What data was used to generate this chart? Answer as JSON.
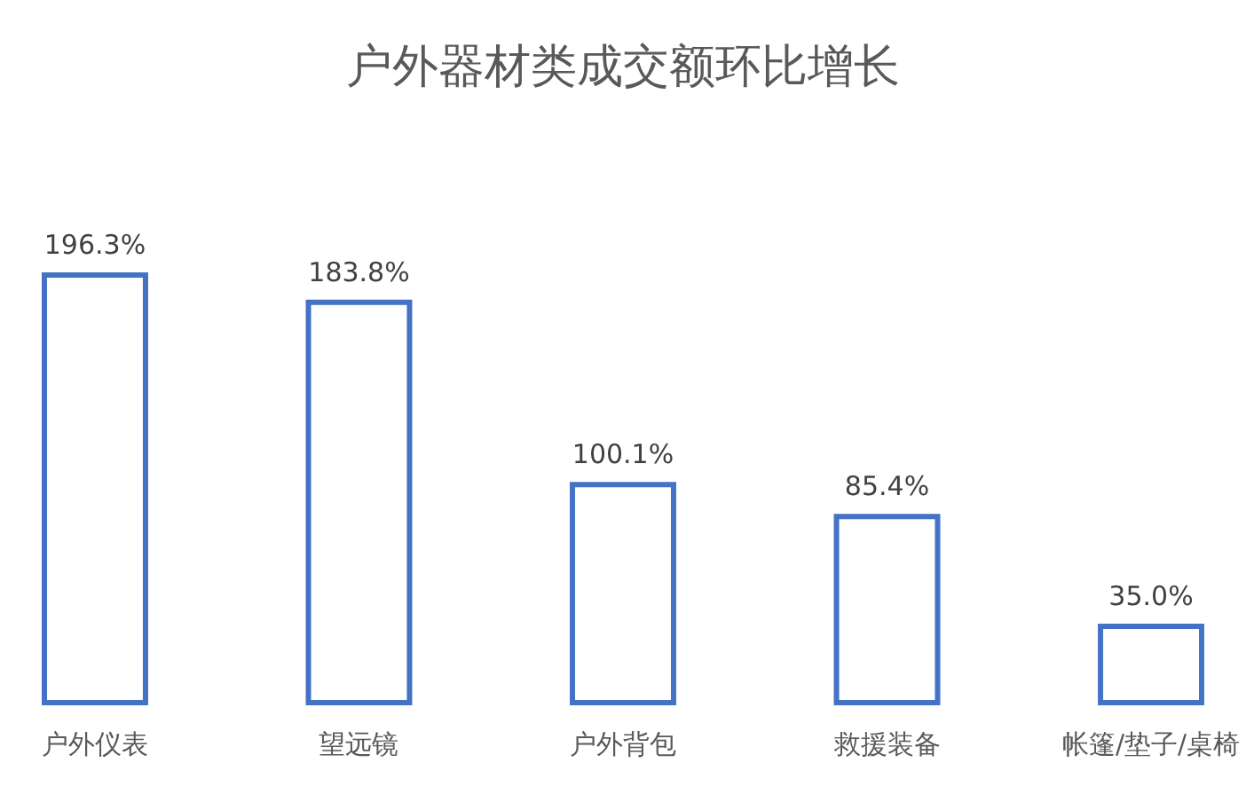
{
  "chart_data": {
    "type": "bar",
    "title": "户外器材类成交额环比增长",
    "categories": [
      "户外仪表",
      "望远镜",
      "户外背包",
      "救援装备",
      "帐篷/垫子/桌椅"
    ],
    "values": [
      196.3,
      183.8,
      100.1,
      85.4,
      35.0
    ],
    "value_labels": [
      "196.3%",
      "183.8%",
      "100.1%",
      "85.4%",
      "35.0%"
    ],
    "color": "#4472c4",
    "tick_labels": "x"
  }
}
